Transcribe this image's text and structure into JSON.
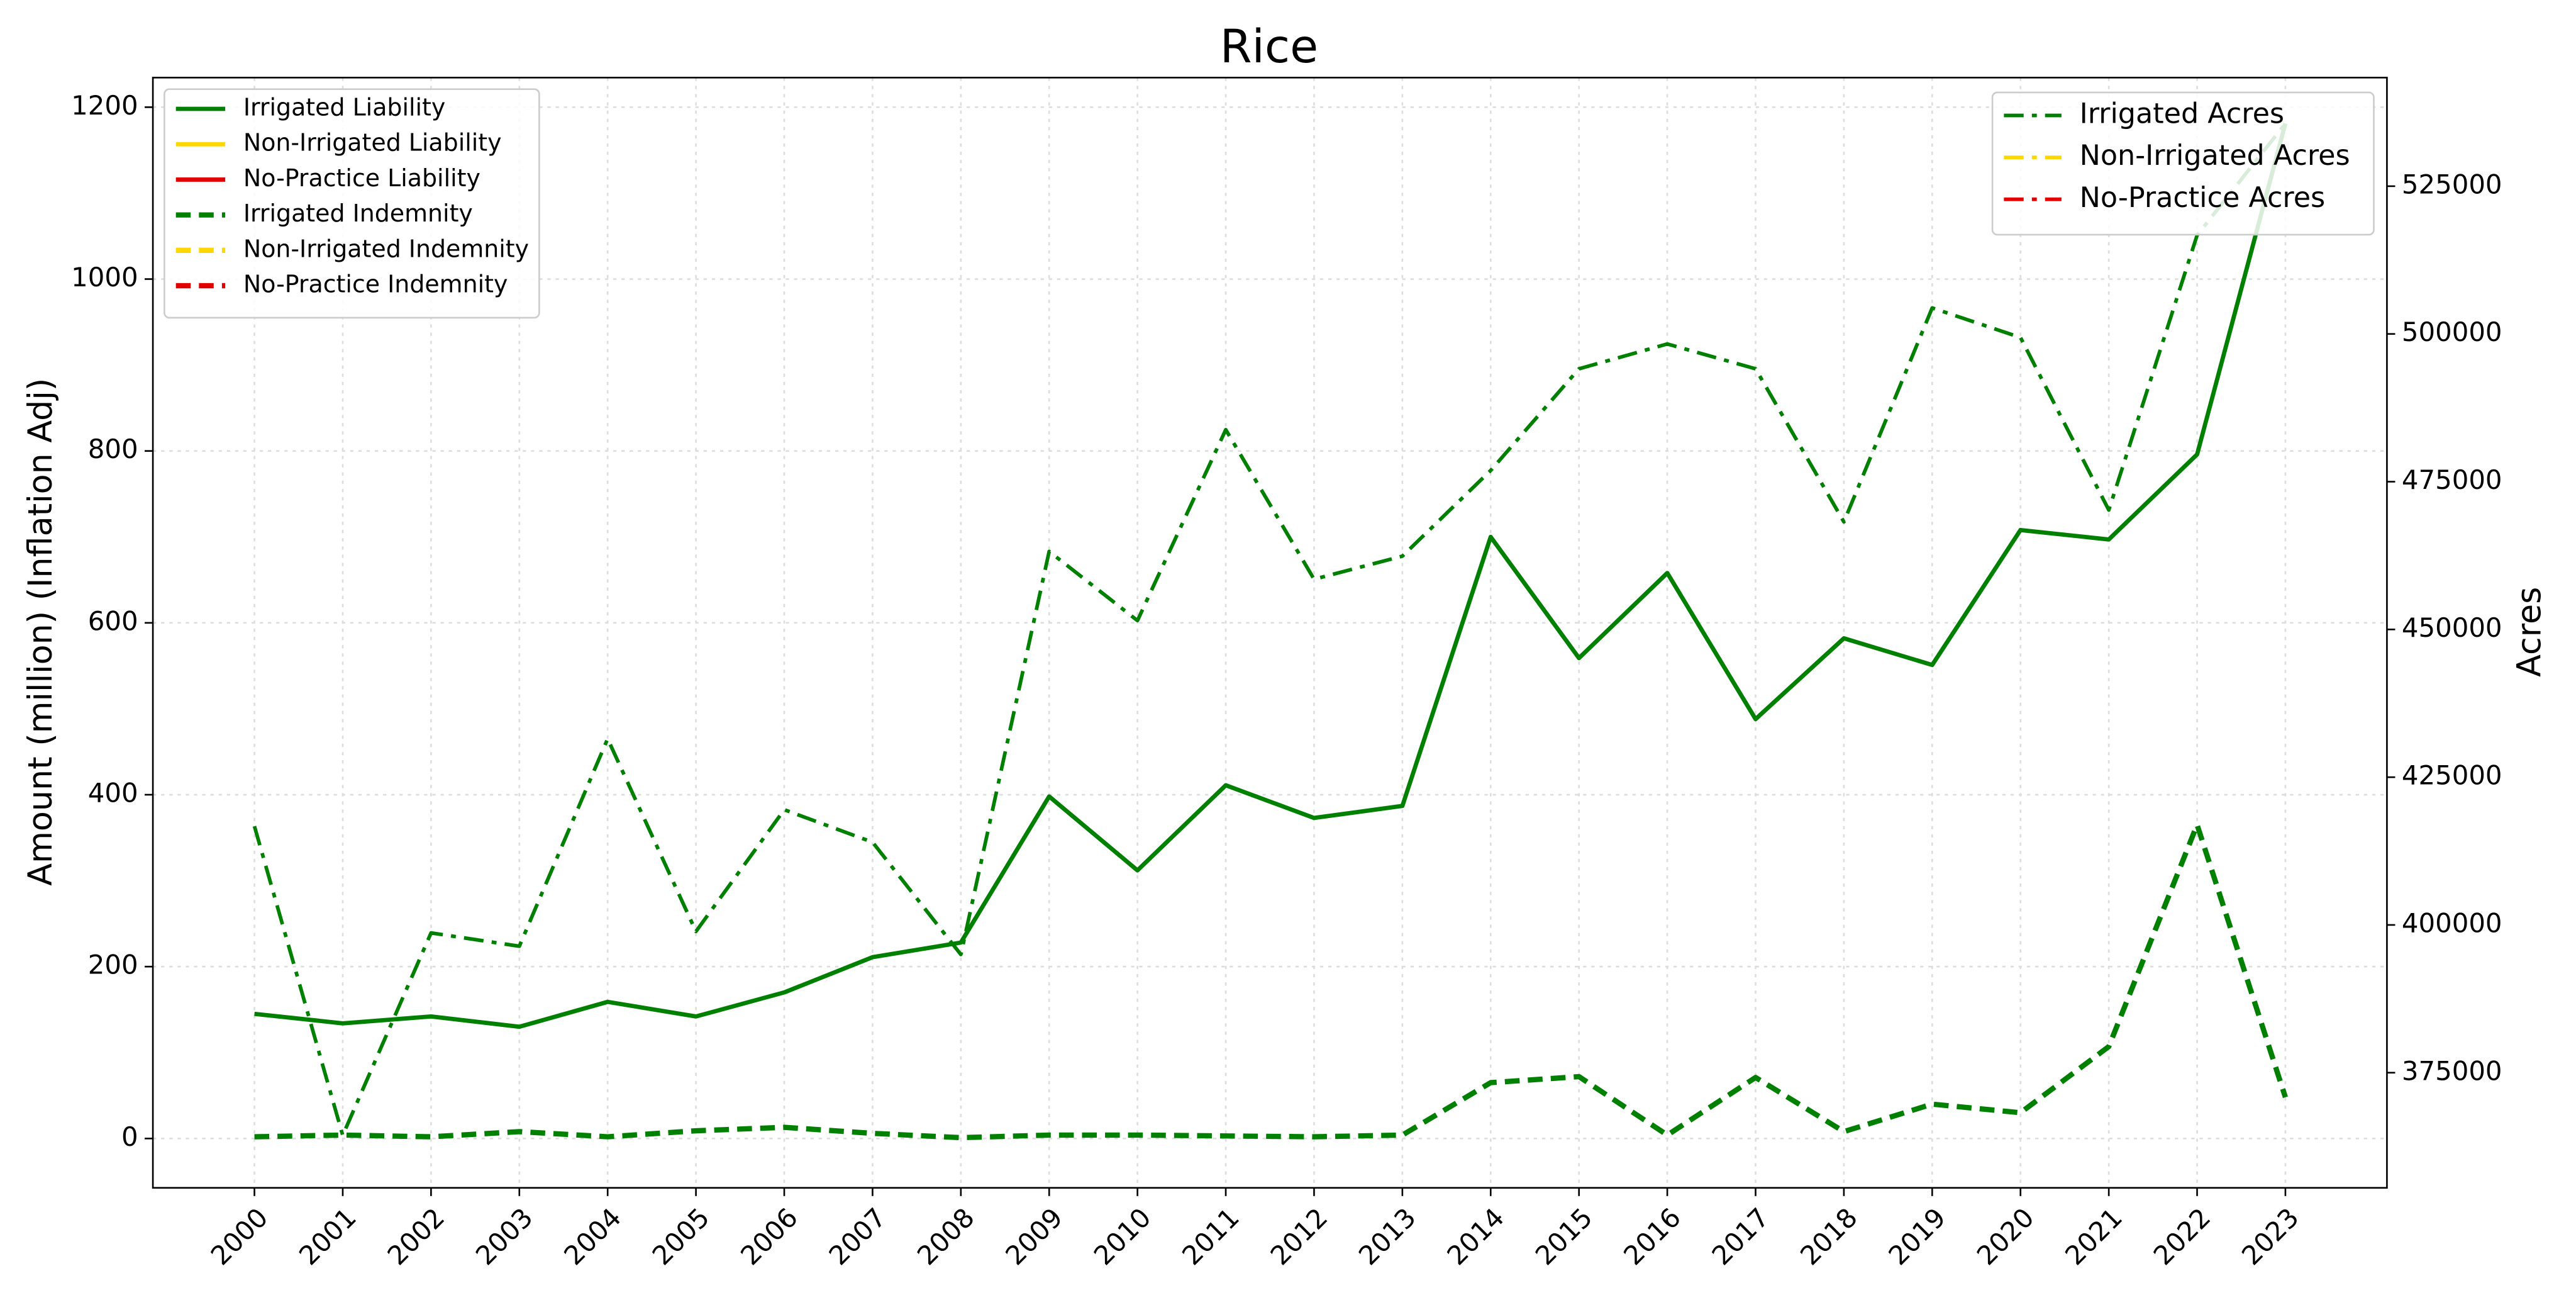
{
  "chart_data": {
    "type": "line",
    "title": "Rice",
    "y_label": "Amount (million) (Inflation Adj)",
    "y2_label": "Acres",
    "x": [
      2000,
      2001,
      2002,
      2003,
      2004,
      2005,
      2006,
      2007,
      2008,
      2009,
      2010,
      2011,
      2012,
      2013,
      2014,
      2015,
      2016,
      2017,
      2018,
      2019,
      2020,
      2021,
      2022,
      2023
    ],
    "xlim": [
      1998.85,
      2024.15
    ],
    "xticks": [
      2000,
      2001,
      2002,
      2003,
      2004,
      2005,
      2006,
      2007,
      2008,
      2009,
      2010,
      2011,
      2012,
      2013,
      2014,
      2015,
      2016,
      2017,
      2018,
      2019,
      2020,
      2021,
      2022,
      2023
    ],
    "ylim": [
      -57.4,
      1234.4
    ],
    "yticks": [
      0,
      200,
      400,
      600,
      800,
      1000,
      1200
    ],
    "y2lim": [
      355518,
      543369
    ],
    "y2ticks": [
      375000,
      400000,
      425000,
      450000,
      475000,
      500000,
      525000
    ],
    "grid": true,
    "legend": {
      "y": "upper left",
      "y2": "upper right"
    },
    "series": [
      {
        "name": "Irrigated Liability",
        "color": "#008000",
        "style": "solid",
        "axis": "y",
        "values": [
          145,
          134,
          142,
          130,
          159,
          142,
          170,
          211,
          228,
          398,
          312,
          411,
          373,
          387,
          700,
          559,
          658,
          488,
          582,
          551,
          708,
          697,
          796,
          1181
        ]
      },
      {
        "name": "Non-Irrigated Liability",
        "color": "#ffd700",
        "style": "solid",
        "axis": "y",
        "values": [
          null,
          null,
          null,
          null,
          null,
          null,
          null,
          null,
          null,
          null,
          null,
          null,
          null,
          null,
          null,
          null,
          null,
          null,
          null,
          null,
          null,
          null,
          null,
          null
        ]
      },
      {
        "name": "No-Practice Liability",
        "color": "#e00000",
        "style": "solid",
        "axis": "y",
        "values": [
          null,
          null,
          null,
          null,
          null,
          null,
          null,
          null,
          null,
          null,
          null,
          null,
          null,
          null,
          null,
          null,
          null,
          null,
          null,
          null,
          null,
          null,
          null,
          null
        ]
      },
      {
        "name": "Irrigated Indemnity",
        "color": "#008000",
        "style": "dashed",
        "axis": "y",
        "values": [
          2,
          4,
          2,
          8,
          2,
          9,
          13,
          6,
          1,
          4,
          4,
          3,
          2,
          4,
          65,
          72,
          4,
          71,
          8,
          40,
          30,
          107,
          365,
          48
        ]
      },
      {
        "name": "Non-Irrigated Indemnity",
        "color": "#ffd700",
        "style": "dashed",
        "axis": "y",
        "values": [
          null,
          null,
          null,
          null,
          null,
          null,
          null,
          null,
          null,
          null,
          null,
          null,
          null,
          null,
          null,
          null,
          null,
          null,
          null,
          null,
          null,
          null,
          null,
          null
        ]
      },
      {
        "name": "No-Practice Indemnity",
        "color": "#e00000",
        "style": "dashed",
        "axis": "y",
        "values": [
          null,
          null,
          null,
          null,
          null,
          null,
          null,
          null,
          null,
          null,
          null,
          null,
          null,
          null,
          null,
          null,
          null,
          null,
          null,
          null,
          null,
          null,
          null,
          null
        ]
      },
      {
        "name": "Irrigated Acres",
        "color": "#008000",
        "style": "dashdot",
        "axis": "y2",
        "values": [
          416700,
          364400,
          398650,
          396400,
          431500,
          398900,
          419500,
          414000,
          395000,
          463200,
          451500,
          483800,
          458500,
          462400,
          476900,
          494100,
          498300,
          494100,
          468200,
          504400,
          499400,
          470200,
          516700,
          535600
        ]
      },
      {
        "name": "Non-Irrigated Acres",
        "color": "#ffd700",
        "style": "dashdot",
        "axis": "y2",
        "values": [
          null,
          null,
          null,
          null,
          null,
          null,
          null,
          null,
          null,
          null,
          null,
          null,
          null,
          null,
          null,
          null,
          null,
          null,
          null,
          null,
          null,
          null,
          null,
          null
        ]
      },
      {
        "name": "No-Practice Acres",
        "color": "#e00000",
        "style": "dashdot",
        "axis": "y2",
        "values": [
          null,
          null,
          null,
          null,
          null,
          null,
          null,
          null,
          null,
          null,
          null,
          null,
          null,
          null,
          null,
          null,
          null,
          null,
          null,
          null,
          null,
          null,
          null,
          null
        ]
      }
    ]
  }
}
